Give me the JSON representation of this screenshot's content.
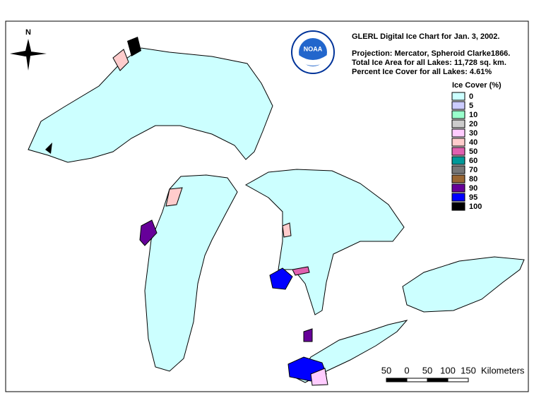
{
  "header": {
    "title": "GLERL Digital Ice Chart for Jan. 3, 2002.",
    "projection": "Projection:  Mercator, Spheroid Clarke1866.",
    "total_area": "Total Ice Area for all Lakes: 11,728 sq. km.",
    "percent_cover": "Percent Ice Cover for all Lakes:  4.61%"
  },
  "logo": {
    "text": "NOAA"
  },
  "compass": {
    "label": "N"
  },
  "legend": {
    "title": "Ice Cover (%)",
    "items": [
      {
        "label": "0",
        "color": "#ccffff"
      },
      {
        "label": "5",
        "color": "#ccccff"
      },
      {
        "label": "10",
        "color": "#99ffcc"
      },
      {
        "label": "20",
        "color": "#cccccc"
      },
      {
        "label": "30",
        "color": "#ffccff"
      },
      {
        "label": "40",
        "color": "#ffcccc"
      },
      {
        "label": "50",
        "color": "#e060b0"
      },
      {
        "label": "60",
        "color": "#009999"
      },
      {
        "label": "70",
        "color": "#777777"
      },
      {
        "label": "80",
        "color": "#996633"
      },
      {
        "label": "90",
        "color": "#660099"
      },
      {
        "label": "95",
        "color": "#0000ff"
      },
      {
        "label": "100",
        "color": "#000000"
      }
    ]
  },
  "scale_bar": {
    "labels": [
      "50",
      "0",
      "50",
      "100",
      "150"
    ],
    "unit": "Kilometers"
  }
}
